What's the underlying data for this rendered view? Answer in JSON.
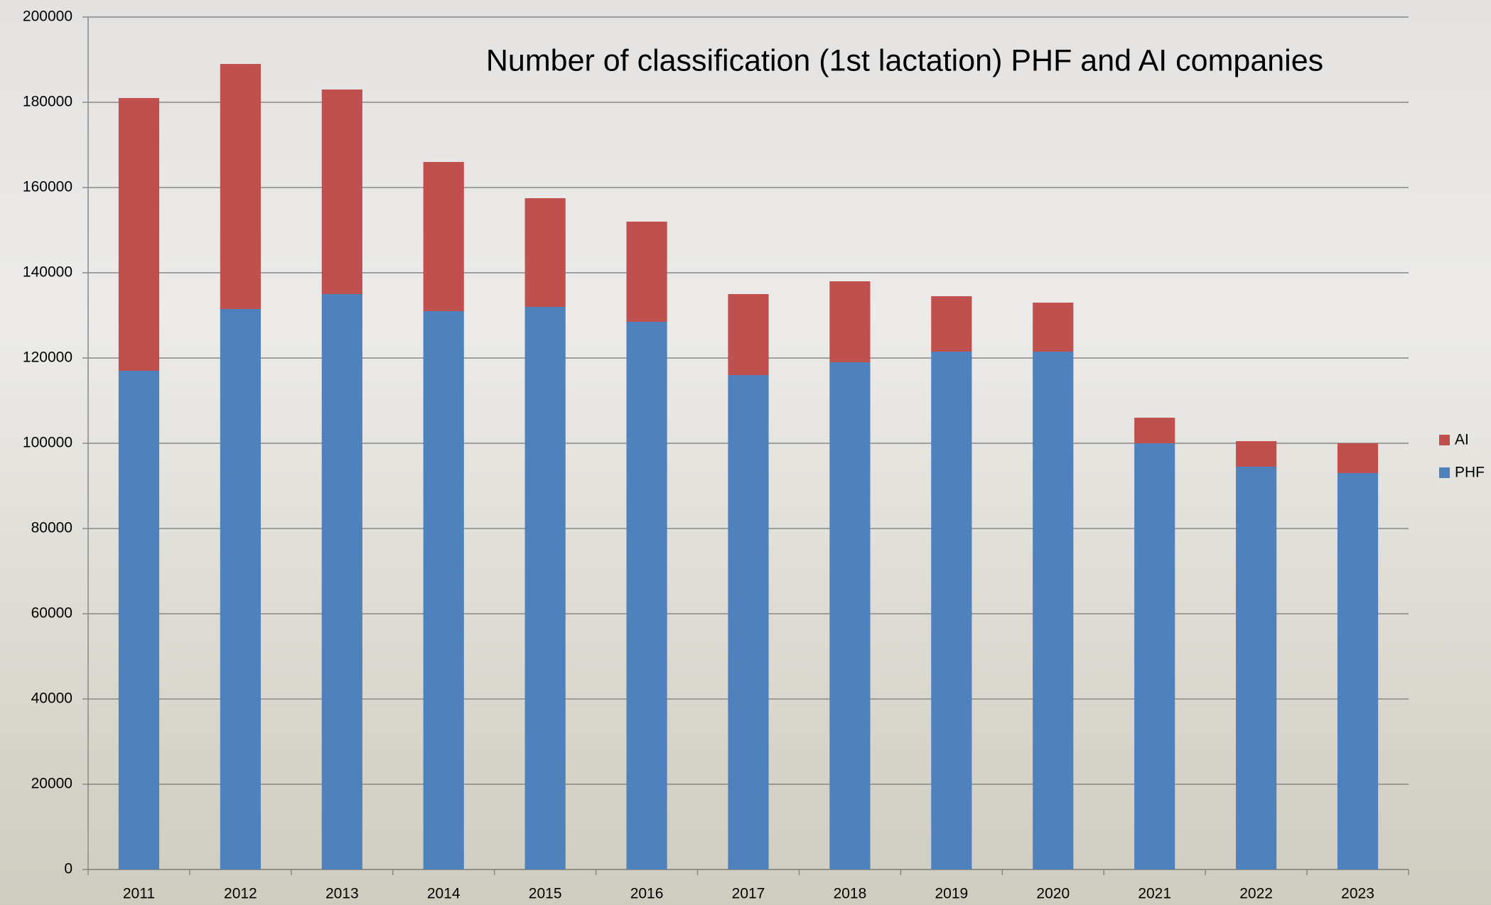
{
  "chart_data": {
    "type": "stacked_bar",
    "title": "Number of classification (1st lactation) PHF and AI companies",
    "categories": [
      "2011",
      "2012",
      "2013",
      "2014",
      "2015",
      "2016",
      "2017",
      "2018",
      "2019",
      "2020",
      "2021",
      "2022",
      "2023"
    ],
    "series": [
      {
        "name": "PHF",
        "color": "#4f81bd",
        "values": [
          117000,
          131500,
          135000,
          131000,
          132000,
          128500,
          116000,
          119000,
          121500,
          121500,
          100000,
          94500,
          93000
        ]
      },
      {
        "name": "AI",
        "color": "#c0504d",
        "values": [
          64000,
          57500,
          48000,
          35000,
          25500,
          23500,
          19000,
          19000,
          13000,
          11500,
          6000,
          6000,
          7000
        ]
      }
    ],
    "ylim": [
      0,
      200000
    ],
    "yticks": [
      0,
      20000,
      40000,
      60000,
      80000,
      100000,
      120000,
      140000,
      160000,
      180000,
      200000
    ],
    "grid": true,
    "legend": "right"
  }
}
